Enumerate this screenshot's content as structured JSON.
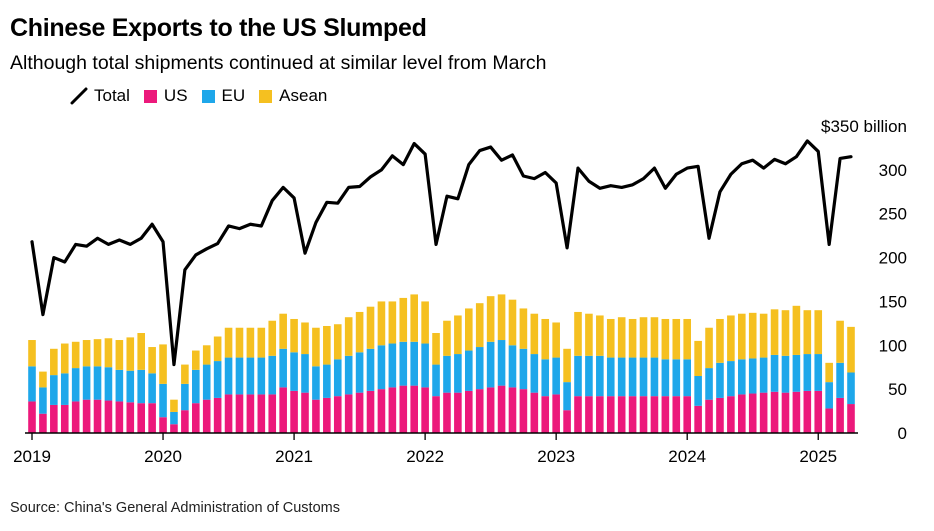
{
  "title": "Chinese Exports to the US Slumped",
  "subtitle": "Although total shipments continued at similar level from March",
  "source": "Source: China's General Administration of Customs",
  "legend": [
    {
      "label": "Total",
      "color": "#000000",
      "type": "line"
    },
    {
      "label": "US",
      "color": "#ec197b",
      "type": "bar"
    },
    {
      "label": "EU",
      "color": "#1ea7ea",
      "type": "bar"
    },
    {
      "label": "Asean",
      "color": "#f5c020",
      "type": "bar"
    }
  ],
  "chart_data": {
    "type": "bar",
    "stacked": true,
    "title": "Chinese Exports to the US Slumped",
    "ylabel": "$ billion",
    "ylim": [
      0,
      350
    ],
    "y_ticks": [
      {
        "value": 0,
        "label": "0"
      },
      {
        "value": 50,
        "label": "50"
      },
      {
        "value": 100,
        "label": "100"
      },
      {
        "value": 150,
        "label": "150"
      },
      {
        "value": 200,
        "label": "200"
      },
      {
        "value": 250,
        "label": "250"
      },
      {
        "value": 300,
        "label": "300"
      },
      {
        "value": 350,
        "label": "$350 billion"
      }
    ],
    "x_ticks": [
      {
        "index": 0,
        "label": "2019"
      },
      {
        "index": 12,
        "label": "2020"
      },
      {
        "index": 24,
        "label": "2021"
      },
      {
        "index": 36,
        "label": "2022"
      },
      {
        "index": 48,
        "label": "2023"
      },
      {
        "index": 60,
        "label": "2024"
      },
      {
        "index": 72,
        "label": "2025"
      }
    ],
    "categories": [
      "2019-01",
      "2019-02",
      "2019-03",
      "2019-04",
      "2019-05",
      "2019-06",
      "2019-07",
      "2019-08",
      "2019-09",
      "2019-10",
      "2019-11",
      "2019-12",
      "2020-01",
      "2020-02",
      "2020-03",
      "2020-04",
      "2020-05",
      "2020-06",
      "2020-07",
      "2020-08",
      "2020-09",
      "2020-10",
      "2020-11",
      "2020-12",
      "2021-01",
      "2021-02",
      "2021-03",
      "2021-04",
      "2021-05",
      "2021-06",
      "2021-07",
      "2021-08",
      "2021-09",
      "2021-10",
      "2021-11",
      "2021-12",
      "2022-01",
      "2022-02",
      "2022-03",
      "2022-04",
      "2022-05",
      "2022-06",
      "2022-07",
      "2022-08",
      "2022-09",
      "2022-10",
      "2022-11",
      "2022-12",
      "2023-01",
      "2023-02",
      "2023-03",
      "2023-04",
      "2023-05",
      "2023-06",
      "2023-07",
      "2023-08",
      "2023-09",
      "2023-10",
      "2023-11",
      "2023-12",
      "2024-01",
      "2024-02",
      "2024-03",
      "2024-04",
      "2024-05",
      "2024-06",
      "2024-07",
      "2024-08",
      "2024-09",
      "2024-10",
      "2024-11",
      "2024-12",
      "2025-01",
      "2025-02",
      "2025-03",
      "2025-04"
    ],
    "series": [
      {
        "name": "US",
        "color": "#ec197b",
        "values": [
          36,
          22,
          32,
          32,
          36,
          38,
          38,
          37,
          36,
          35,
          34,
          34,
          18,
          10,
          26,
          34,
          38,
          40,
          44,
          44,
          44,
          44,
          44,
          52,
          48,
          46,
          38,
          40,
          42,
          44,
          46,
          48,
          50,
          52,
          54,
          54,
          52,
          42,
          46,
          46,
          48,
          50,
          52,
          54,
          52,
          50,
          46,
          42,
          44,
          26,
          42,
          42,
          42,
          42,
          42,
          42,
          42,
          42,
          42,
          42,
          42,
          31,
          38,
          40,
          42,
          44,
          45,
          46,
          47,
          46,
          47,
          48,
          48,
          28,
          40,
          33
        ]
      },
      {
        "name": "EU",
        "color": "#1ea7ea",
        "values": [
          40,
          30,
          34,
          36,
          38,
          38,
          38,
          38,
          36,
          36,
          38,
          34,
          38,
          14,
          30,
          38,
          40,
          42,
          42,
          42,
          42,
          42,
          44,
          44,
          44,
          44,
          38,
          38,
          42,
          44,
          46,
          48,
          50,
          50,
          50,
          50,
          50,
          36,
          42,
          44,
          46,
          48,
          52,
          52,
          48,
          46,
          44,
          42,
          42,
          32,
          46,
          46,
          46,
          44,
          44,
          44,
          44,
          44,
          42,
          42,
          42,
          34,
          36,
          40,
          40,
          40,
          40,
          40,
          42,
          42,
          42,
          42,
          42,
          30,
          40,
          36
        ]
      },
      {
        "name": "Asean",
        "color": "#f5c020",
        "values": [
          30,
          18,
          30,
          34,
          30,
          30,
          31,
          33,
          34,
          38,
          42,
          30,
          45,
          14,
          22,
          22,
          22,
          28,
          34,
          34,
          34,
          34,
          40,
          40,
          38,
          36,
          44,
          44,
          40,
          44,
          46,
          48,
          50,
          48,
          50,
          54,
          48,
          36,
          40,
          44,
          48,
          50,
          52,
          52,
          52,
          46,
          46,
          46,
          40,
          38,
          50,
          48,
          46,
          44,
          46,
          44,
          46,
          46,
          46,
          46,
          46,
          40,
          46,
          50,
          52,
          52,
          52,
          50,
          52,
          52,
          56,
          50,
          50,
          22,
          48,
          52
        ]
      },
      {
        "name": "Total",
        "color": "#000000",
        "line": true,
        "values": [
          218,
          135,
          200,
          195,
          215,
          213,
          222,
          215,
          220,
          215,
          222,
          238,
          218,
          78,
          186,
          203,
          210,
          216,
          236,
          233,
          238,
          236,
          265,
          280,
          268,
          205,
          240,
          263,
          262,
          280,
          281,
          292,
          300,
          316,
          306,
          330,
          318,
          215,
          270,
          267,
          306,
          322,
          326,
          311,
          317,
          293,
          290,
          297,
          285,
          211,
          302,
          287,
          279,
          282,
          280,
          283,
          290,
          302,
          279,
          295,
          302,
          304,
          222,
          275,
          295,
          307,
          311,
          302,
          312,
          307,
          315,
          333,
          321,
          215,
          313,
          315
        ]
      }
    ]
  }
}
